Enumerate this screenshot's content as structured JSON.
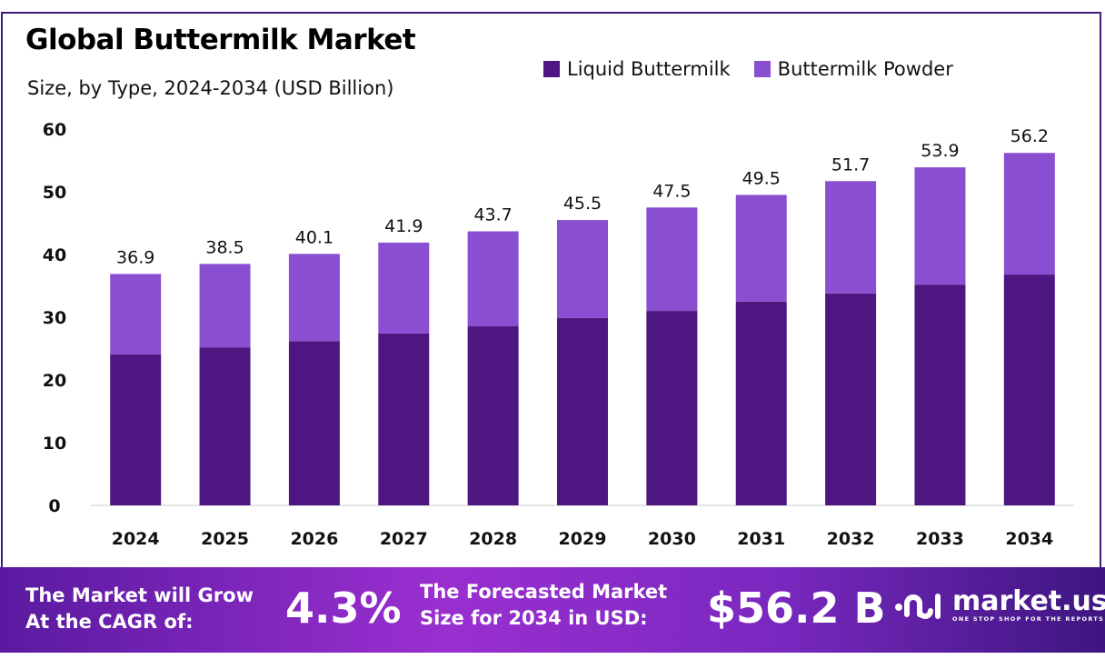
{
  "chart_data": {
    "type": "bar",
    "stacked": true,
    "title": "Global Buttermilk Market",
    "subtitle": "Size, by Type, 2024-2034 (USD Billion)",
    "categories": [
      "2024",
      "2025",
      "2026",
      "2027",
      "2028",
      "2029",
      "2030",
      "2031",
      "2032",
      "2033",
      "2034"
    ],
    "series": [
      {
        "name": "Liquid Buttermilk",
        "color": "#4e1681",
        "values": [
          24.1,
          25.2,
          26.2,
          27.4,
          28.6,
          29.9,
          31.0,
          32.5,
          33.8,
          35.2,
          36.8
        ]
      },
      {
        "name": "Buttermilk Powder",
        "color": "#8a4fd1",
        "values": [
          12.8,
          13.3,
          13.9,
          14.5,
          15.1,
          15.6,
          16.5,
          17.0,
          17.9,
          18.7,
          19.4
        ]
      }
    ],
    "totals": [
      "36.9",
      "38.5",
      "40.1",
      "41.9",
      "43.7",
      "45.5",
      "47.5",
      "49.5",
      "51.7",
      "53.9",
      "56.2"
    ],
    "ylim": [
      0,
      60
    ],
    "yticks": [
      "0",
      "10",
      "20",
      "30",
      "40",
      "50",
      "60"
    ],
    "grid": false,
    "legend": "top-right"
  },
  "banner": {
    "cagr_label_1": "The Market will Grow",
    "cagr_label_2": "At the CAGR of:",
    "cagr_value": "4.3%",
    "forecast_label_1": "The Forecasted Market",
    "forecast_label_2": "Size for 2034 in USD:",
    "forecast_value": "$56.2 B",
    "logo_text": "market.us",
    "logo_tagline": "ONE STOP SHOP FOR THE REPORTS"
  }
}
